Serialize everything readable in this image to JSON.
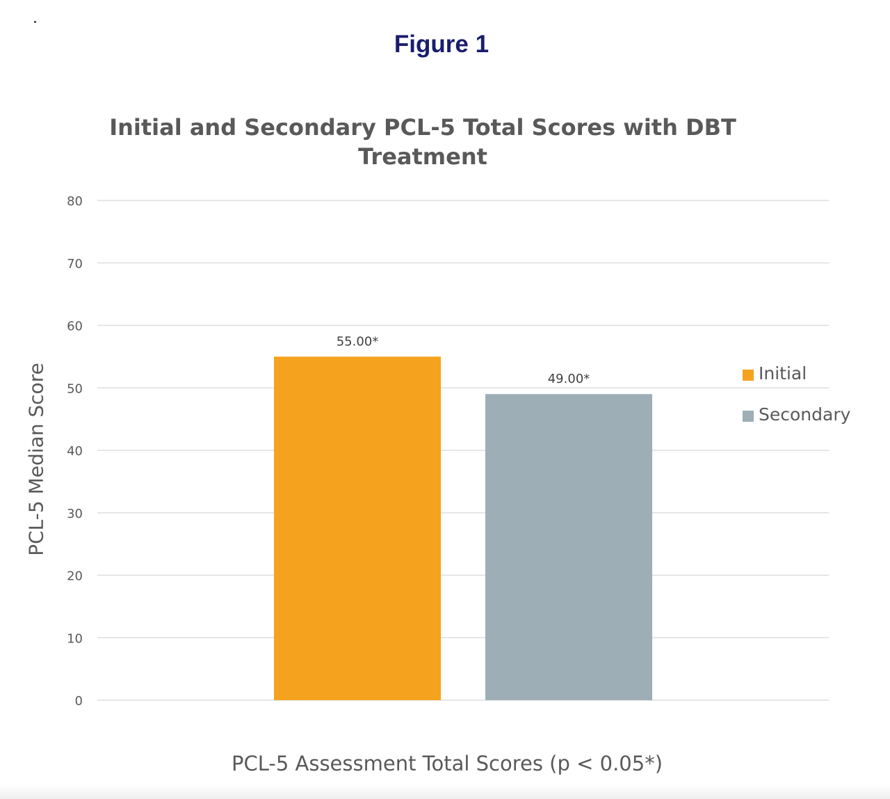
{
  "figure_label": "Figure 1",
  "chart_data": {
    "type": "bar",
    "title": "Initial and Secondary PCL-5 Total Scores with DBT Treatment",
    "xlabel": "PCL-5 Assessment Total Scores (p < 0.05*)",
    "ylabel": "PCL-5 Median Score",
    "ylim": [
      0,
      80
    ],
    "yticks": [
      0,
      10,
      20,
      30,
      40,
      50,
      60,
      70,
      80
    ],
    "grid": true,
    "legend_position": "right",
    "series": [
      {
        "name": "Initial",
        "values": [
          55.0
        ],
        "data_label": "55.00*",
        "color": "#f5a31e"
      },
      {
        "name": "Secondary",
        "values": [
          49.0
        ],
        "data_label": "49.00*",
        "color": "#9daeb6"
      }
    ]
  },
  "colors": {
    "figure_label": "#1a1d6e",
    "text": "#595959",
    "gridline": "#dedede"
  }
}
